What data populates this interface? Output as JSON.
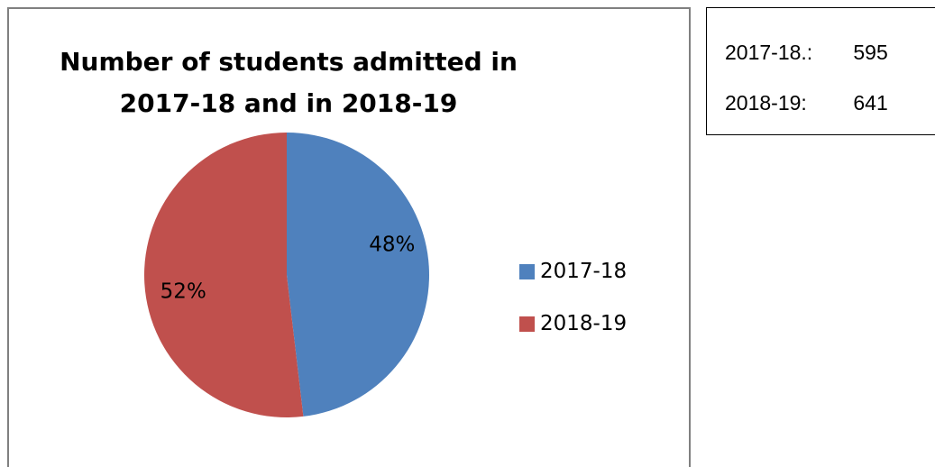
{
  "chart_data": {
    "type": "pie",
    "title": "Number of students admitted in 2017-18 and in 2018-19",
    "title_lines": [
      "Number of students admitted in",
      "2017-18 and in 2018-19"
    ],
    "categories": [
      "2017-18",
      "2018-19"
    ],
    "values": [
      595,
      641
    ],
    "data_labels": [
      "48%",
      "52%"
    ],
    "colors": [
      "#4F81BD",
      "#C0504D"
    ],
    "legend_position": "right"
  },
  "info_box": {
    "rows": [
      {
        "label": "2017-18.:",
        "value": "595"
      },
      {
        "label": "2018-19:",
        "value": "641"
      }
    ]
  }
}
